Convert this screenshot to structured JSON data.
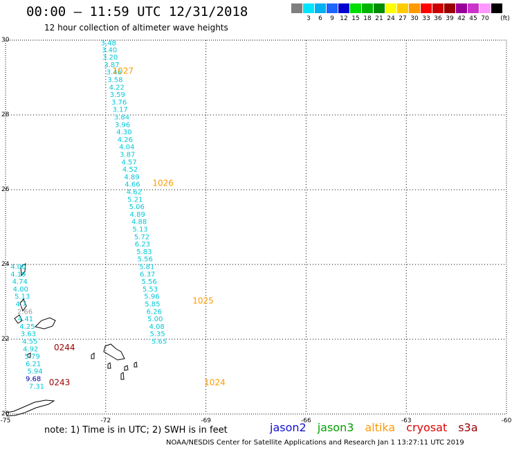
{
  "header": {
    "title": "00:00 – 11:59 UTC 12/31/2018",
    "subtitle": "12 hour collection of altimeter wave heights"
  },
  "legend": {
    "unit": "(ft)",
    "swatches": [
      {
        "label": "",
        "color": "#7f7f7f"
      },
      {
        "label": "3",
        "color": "#00e5ff"
      },
      {
        "label": "6",
        "color": "#00b0f0"
      },
      {
        "label": "9",
        "color": "#1e64ff"
      },
      {
        "label": "12",
        "color": "#0000d0"
      },
      {
        "label": "15",
        "color": "#00dd00"
      },
      {
        "label": "18",
        "color": "#00b400"
      },
      {
        "label": "21",
        "color": "#008c00"
      },
      {
        "label": "24",
        "color": "#ffff00"
      },
      {
        "label": "27",
        "color": "#ffcc00"
      },
      {
        "label": "30",
        "color": "#ff9900"
      },
      {
        "label": "33",
        "color": "#ff0000"
      },
      {
        "label": "36",
        "color": "#cc0000"
      },
      {
        "label": "39",
        "color": "#990000"
      },
      {
        "label": "42",
        "color": "#990099"
      },
      {
        "label": "45",
        "color": "#cc33cc"
      },
      {
        "label": "70",
        "color": "#ff99ff"
      },
      {
        "label": "",
        "color": "#000000"
      }
    ]
  },
  "map": {
    "lon_ticks": [
      "-75",
      "-72",
      "-69",
      "-66",
      "-63",
      "-60"
    ],
    "lat_ticks": [
      "20",
      "22",
      "24",
      "26",
      "28",
      "30"
    ],
    "lon_range": [
      -75,
      -60
    ],
    "lat_range": [
      20,
      30
    ],
    "colors": {
      "cyan": "#00c8d8",
      "orange": "#ff9900",
      "darkred": "#990000",
      "gray": "#999999",
      "navy": "#0000aa"
    },
    "track_main": [
      {
        "lon": -72.15,
        "lat": 29.86,
        "v": "3.48"
      },
      {
        "lon": -72.12,
        "lat": 29.68,
        "v": "3.40"
      },
      {
        "lon": -72.1,
        "lat": 29.48,
        "v": "3.20"
      },
      {
        "lon": -72.05,
        "lat": 29.28,
        "v": "3.87"
      },
      {
        "lon": -71.98,
        "lat": 29.08,
        "v": "3.46"
      },
      {
        "lon": -71.95,
        "lat": 28.88,
        "v": "3.58"
      },
      {
        "lon": -71.9,
        "lat": 28.68,
        "v": "4.22"
      },
      {
        "lon": -71.88,
        "lat": 28.48,
        "v": "3.59"
      },
      {
        "lon": -71.83,
        "lat": 28.28,
        "v": "3.76"
      },
      {
        "lon": -71.8,
        "lat": 28.08,
        "v": "3.17"
      },
      {
        "lon": -71.75,
        "lat": 27.88,
        "v": "3.84"
      },
      {
        "lon": -71.73,
        "lat": 27.68,
        "v": "3.96"
      },
      {
        "lon": -71.68,
        "lat": 27.48,
        "v": "4.30"
      },
      {
        "lon": -71.65,
        "lat": 27.28,
        "v": "4.26"
      },
      {
        "lon": -71.6,
        "lat": 27.08,
        "v": "4.04"
      },
      {
        "lon": -71.58,
        "lat": 26.88,
        "v": "3.87"
      },
      {
        "lon": -71.53,
        "lat": 26.68,
        "v": "4.57"
      },
      {
        "lon": -71.5,
        "lat": 26.48,
        "v": "4.52"
      },
      {
        "lon": -71.45,
        "lat": 26.28,
        "v": "4.89"
      },
      {
        "lon": -71.43,
        "lat": 26.08,
        "v": "4.66"
      },
      {
        "lon": -71.38,
        "lat": 25.88,
        "v": "4.62"
      },
      {
        "lon": -71.35,
        "lat": 25.68,
        "v": "5.21"
      },
      {
        "lon": -71.3,
        "lat": 25.48,
        "v": "5.06"
      },
      {
        "lon": -71.28,
        "lat": 25.28,
        "v": "4.89"
      },
      {
        "lon": -71.23,
        "lat": 25.08,
        "v": "4.88"
      },
      {
        "lon": -71.2,
        "lat": 24.88,
        "v": "5.13"
      },
      {
        "lon": -71.15,
        "lat": 24.68,
        "v": "5.72"
      },
      {
        "lon": -71.13,
        "lat": 24.48,
        "v": "6.23"
      },
      {
        "lon": -71.08,
        "lat": 24.28,
        "v": "5.83"
      },
      {
        "lon": -71.05,
        "lat": 24.08,
        "v": "5.56"
      },
      {
        "lon": -71.0,
        "lat": 23.88,
        "v": "5.81"
      },
      {
        "lon": -70.98,
        "lat": 23.68,
        "v": "6.37"
      },
      {
        "lon": -70.93,
        "lat": 23.48,
        "v": "5.56"
      },
      {
        "lon": -70.9,
        "lat": 23.28,
        "v": "5.53"
      },
      {
        "lon": -70.85,
        "lat": 23.08,
        "v": "5.96"
      },
      {
        "lon": -70.83,
        "lat": 22.88,
        "v": "5.85"
      },
      {
        "lon": -70.78,
        "lat": 22.68,
        "v": "6.26"
      },
      {
        "lon": -70.75,
        "lat": 22.48,
        "v": "5.00"
      },
      {
        "lon": -70.7,
        "lat": 22.28,
        "v": "4.08"
      },
      {
        "lon": -70.68,
        "lat": 22.08,
        "v": "5.35"
      },
      {
        "lon": -70.63,
        "lat": 21.88,
        "v": "5.65"
      }
    ],
    "track_west": [
      {
        "lon": -74.85,
        "lat": 23.88,
        "v": "4.00",
        "c": "cyan"
      },
      {
        "lon": -74.85,
        "lat": 23.68,
        "v": "4.19",
        "c": "cyan"
      },
      {
        "lon": -74.8,
        "lat": 23.48,
        "v": "4.74",
        "c": "cyan"
      },
      {
        "lon": -74.78,
        "lat": 23.28,
        "v": "4.00",
        "c": "cyan"
      },
      {
        "lon": -74.73,
        "lat": 23.08,
        "v": "5.13",
        "c": "cyan"
      },
      {
        "lon": -74.7,
        "lat": 22.88,
        "v": "4.7",
        "c": "cyan"
      },
      {
        "lon": -74.65,
        "lat": 22.68,
        "v": "2.66",
        "c": "gray"
      },
      {
        "lon": -74.63,
        "lat": 22.48,
        "v": "4.41",
        "c": "cyan"
      },
      {
        "lon": -74.58,
        "lat": 22.28,
        "v": "4.25",
        "c": "cyan"
      },
      {
        "lon": -74.55,
        "lat": 22.08,
        "v": "3.63",
        "c": "cyan"
      },
      {
        "lon": -74.5,
        "lat": 21.88,
        "v": "4.55",
        "c": "cyan"
      },
      {
        "lon": -74.48,
        "lat": 21.68,
        "v": "4.92",
        "c": "cyan"
      },
      {
        "lon": -74.43,
        "lat": 21.48,
        "v": "5.79",
        "c": "cyan"
      },
      {
        "lon": -74.4,
        "lat": 21.28,
        "v": "6.21",
        "c": "cyan"
      },
      {
        "lon": -74.35,
        "lat": 21.08,
        "v": "5.94",
        "c": "cyan"
      },
      {
        "lon": -74.4,
        "lat": 20.88,
        "v": "9.68",
        "c": "navy"
      },
      {
        "lon": -74.3,
        "lat": 20.68,
        "v": "7.31",
        "c": "cyan"
      }
    ],
    "pass_labels": [
      {
        "lon": -71.8,
        "lat": 29.1,
        "v": "1027",
        "c": "orange"
      },
      {
        "lon": -70.6,
        "lat": 26.1,
        "v": "1026",
        "c": "orange"
      },
      {
        "lon": -69.4,
        "lat": 22.95,
        "v": "1025",
        "c": "orange"
      },
      {
        "lon": -69.05,
        "lat": 20.77,
        "v": "1024",
        "c": "orange"
      },
      {
        "lon": -73.55,
        "lat": 21.7,
        "v": "0244",
        "c": "darkred"
      },
      {
        "lon": -73.7,
        "lat": 20.77,
        "v": "0243",
        "c": "darkred"
      }
    ]
  },
  "footer": {
    "note": "note:  1) Time is in UTC;  2) SWH is in feet",
    "credit": "NOAA/NESDIS Center for Satellite Applications and Research     Jan  1 13:27:11 UTC 2019",
    "satellites": [
      {
        "name": "jason2",
        "color": "#1010d0"
      },
      {
        "name": "jason3",
        "color": "#00a000"
      },
      {
        "name": "altika",
        "color": "#ff9900"
      },
      {
        "name": "cryosat",
        "color": "#dd0000"
      },
      {
        "name": "s3a",
        "color": "#990000"
      }
    ]
  }
}
